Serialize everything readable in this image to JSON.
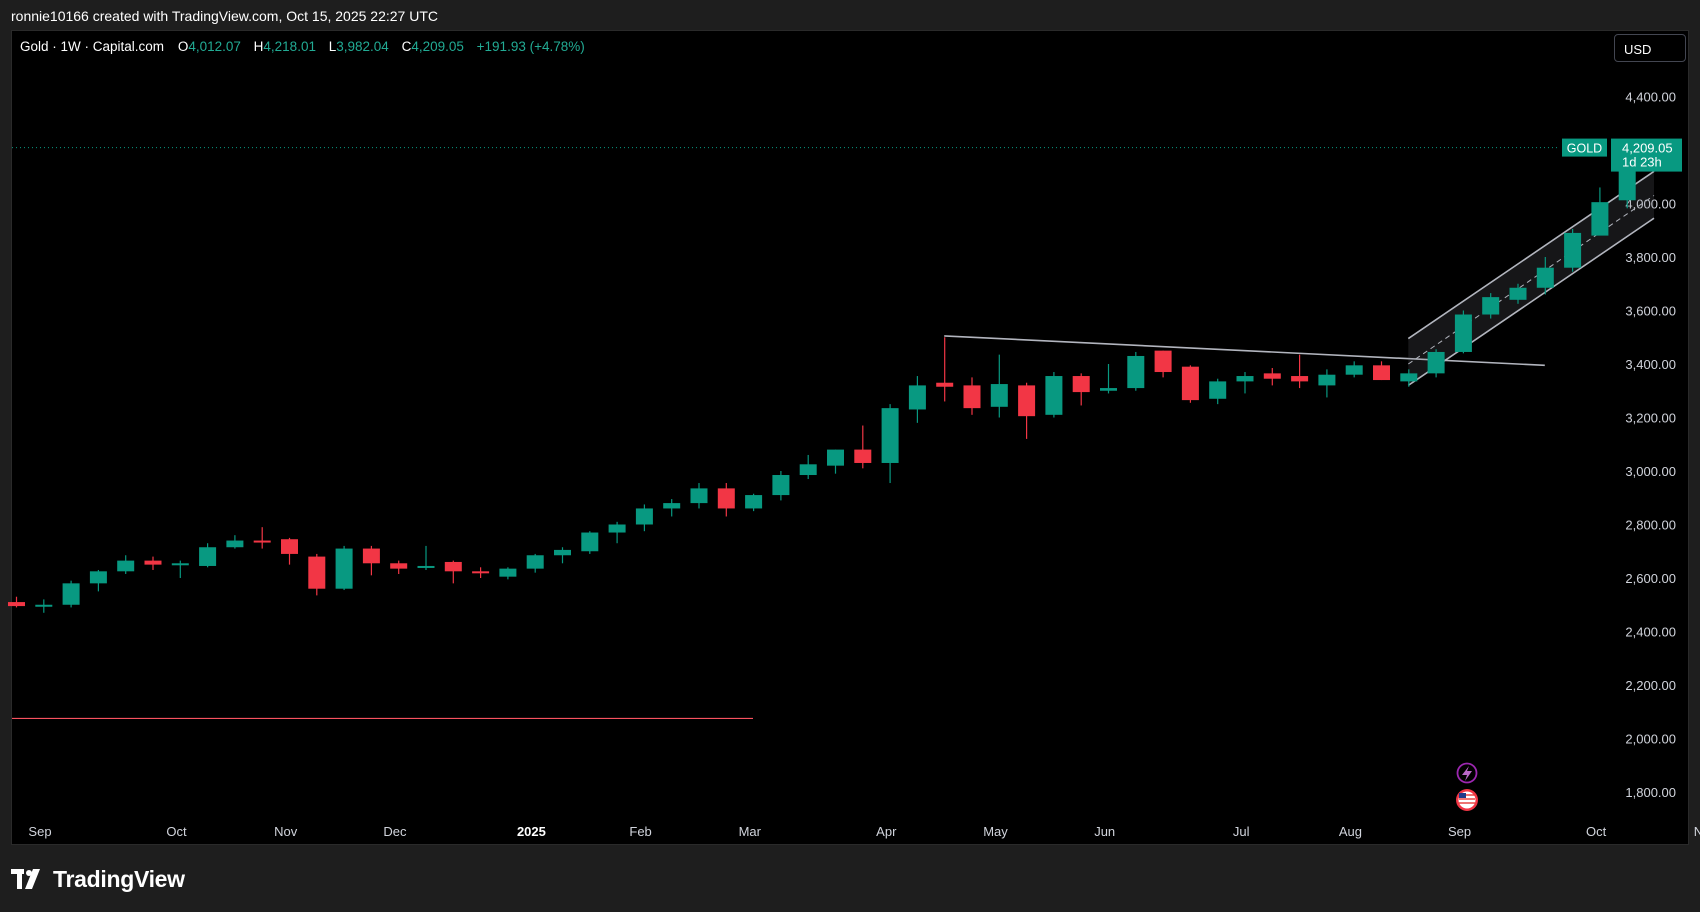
{
  "credit": "ronnie10166 created with TradingView.com, Oct 15, 2025 22:27 UTC",
  "legend": {
    "symbol": "Gold · 1W · Capital.com",
    "o_label": "O",
    "o_value": "4,012.07",
    "h_label": "H",
    "h_value": "4,218.01",
    "l_label": "L",
    "l_value": "3,982.04",
    "c_label": "C",
    "c_value": "4,209.05",
    "change": "+191.93 (+4.78%)"
  },
  "currency": "USD",
  "price_tag": {
    "symbol": "GOLD",
    "price": "4,209.05",
    "countdown": "1d 23h"
  },
  "brand": "TradingView",
  "colors": {
    "up": "#089981",
    "down": "#f23645",
    "background": "#000000",
    "text": "#d1d4dc"
  },
  "icons": [
    "lightning-icon",
    "us-flag-icon"
  ],
  "chart_data": {
    "type": "candlestick",
    "interval": "1W",
    "y_axis": {
      "range": [
        1700,
        4550
      ],
      "ticks": [
        4400,
        4000,
        3800,
        3600,
        3400,
        3200,
        3000,
        2800,
        2600,
        2400,
        2200,
        2000,
        1800
      ],
      "tick_labels": [
        "4,400.00",
        "4,000.00",
        "3,800.00",
        "3,600.00",
        "3,400.00",
        "3,200.00",
        "3,000.00",
        "2,800.00",
        "2,600.00",
        "2,400.00",
        "2,200.00",
        "2,000.00",
        "1,800.00"
      ]
    },
    "x_axis": {
      "labels": [
        {
          "text": "Sep",
          "week": 0
        },
        {
          "text": "Oct",
          "week": 5
        },
        {
          "text": "Nov",
          "week": 9
        },
        {
          "text": "Dec",
          "week": 13
        },
        {
          "text": "2025",
          "week": 18,
          "bold": true
        },
        {
          "text": "Feb",
          "week": 22
        },
        {
          "text": "Mar",
          "week": 26
        },
        {
          "text": "Apr",
          "week": 31
        },
        {
          "text": "May",
          "week": 35
        },
        {
          "text": "Jun",
          "week": 39
        },
        {
          "text": "Jul",
          "week": 44
        },
        {
          "text": "Aug",
          "week": 48
        },
        {
          "text": "Sep",
          "week": 52
        },
        {
          "text": "Oct",
          "week": 57
        },
        {
          "text": "Nov",
          "week": 61
        }
      ]
    },
    "candles": [
      {
        "o": 2510,
        "h": 2530,
        "l": 2490,
        "c": 2495
      },
      {
        "o": 2495,
        "h": 2520,
        "l": 2470,
        "c": 2500
      },
      {
        "o": 2500,
        "h": 2590,
        "l": 2490,
        "c": 2580
      },
      {
        "o": 2580,
        "h": 2630,
        "l": 2550,
        "c": 2625
      },
      {
        "o": 2625,
        "h": 2685,
        "l": 2615,
        "c": 2665
      },
      {
        "o": 2665,
        "h": 2680,
        "l": 2630,
        "c": 2650
      },
      {
        "o": 2650,
        "h": 2665,
        "l": 2600,
        "c": 2655
      },
      {
        "o": 2645,
        "h": 2730,
        "l": 2640,
        "c": 2715
      },
      {
        "o": 2715,
        "h": 2760,
        "l": 2710,
        "c": 2740
      },
      {
        "o": 2740,
        "h": 2790,
        "l": 2710,
        "c": 2735
      },
      {
        "o": 2745,
        "h": 2750,
        "l": 2650,
        "c": 2690
      },
      {
        "o": 2680,
        "h": 2690,
        "l": 2535,
        "c": 2560
      },
      {
        "o": 2560,
        "h": 2720,
        "l": 2555,
        "c": 2710
      },
      {
        "o": 2710,
        "h": 2720,
        "l": 2610,
        "c": 2655
      },
      {
        "o": 2655,
        "h": 2665,
        "l": 2615,
        "c": 2635
      },
      {
        "o": 2640,
        "h": 2720,
        "l": 2630,
        "c": 2645
      },
      {
        "o": 2660,
        "h": 2665,
        "l": 2580,
        "c": 2625
      },
      {
        "o": 2625,
        "h": 2640,
        "l": 2600,
        "c": 2620
      },
      {
        "o": 2605,
        "h": 2640,
        "l": 2595,
        "c": 2635
      },
      {
        "o": 2635,
        "h": 2690,
        "l": 2620,
        "c": 2685
      },
      {
        "o": 2685,
        "h": 2715,
        "l": 2655,
        "c": 2705
      },
      {
        "o": 2700,
        "h": 2775,
        "l": 2690,
        "c": 2770
      },
      {
        "o": 2770,
        "h": 2810,
        "l": 2730,
        "c": 2800
      },
      {
        "o": 2800,
        "h": 2875,
        "l": 2775,
        "c": 2860
      },
      {
        "o": 2860,
        "h": 2895,
        "l": 2830,
        "c": 2880
      },
      {
        "o": 2880,
        "h": 2955,
        "l": 2860,
        "c": 2935
      },
      {
        "o": 2935,
        "h": 2955,
        "l": 2830,
        "c": 2860
      },
      {
        "o": 2860,
        "h": 2915,
        "l": 2850,
        "c": 2910
      },
      {
        "o": 2910,
        "h": 3000,
        "l": 2890,
        "c": 2985
      },
      {
        "o": 2985,
        "h": 3060,
        "l": 2970,
        "c": 3025
      },
      {
        "o": 3020,
        "h": 3080,
        "l": 2990,
        "c": 3080
      },
      {
        "o": 3080,
        "h": 3170,
        "l": 3010,
        "c": 3030
      },
      {
        "o": 3030,
        "h": 3250,
        "l": 2955,
        "c": 3235
      },
      {
        "o": 3230,
        "h": 3355,
        "l": 3180,
        "c": 3320
      },
      {
        "o": 3330,
        "h": 3500,
        "l": 3260,
        "c": 3315
      },
      {
        "o": 3320,
        "h": 3350,
        "l": 3210,
        "c": 3235
      },
      {
        "o": 3240,
        "h": 3435,
        "l": 3200,
        "c": 3325
      },
      {
        "o": 3320,
        "h": 3330,
        "l": 3120,
        "c": 3205
      },
      {
        "o": 3210,
        "h": 3370,
        "l": 3200,
        "c": 3355
      },
      {
        "o": 3355,
        "h": 3365,
        "l": 3245,
        "c": 3295
      },
      {
        "o": 3300,
        "h": 3400,
        "l": 3290,
        "c": 3310
      },
      {
        "o": 3310,
        "h": 3445,
        "l": 3300,
        "c": 3430
      },
      {
        "o": 3450,
        "h": 3450,
        "l": 3350,
        "c": 3370
      },
      {
        "o": 3390,
        "h": 3395,
        "l": 3255,
        "c": 3265
      },
      {
        "o": 3270,
        "h": 3345,
        "l": 3250,
        "c": 3335
      },
      {
        "o": 3335,
        "h": 3370,
        "l": 3290,
        "c": 3355
      },
      {
        "o": 3365,
        "h": 3385,
        "l": 3320,
        "c": 3345
      },
      {
        "o": 3355,
        "h": 3435,
        "l": 3310,
        "c": 3335
      },
      {
        "o": 3320,
        "h": 3380,
        "l": 3275,
        "c": 3360
      },
      {
        "o": 3360,
        "h": 3410,
        "l": 3350,
        "c": 3395
      },
      {
        "o": 3395,
        "h": 3410,
        "l": 3340,
        "c": 3340
      },
      {
        "o": 3335,
        "h": 3380,
        "l": 3315,
        "c": 3365
      },
      {
        "o": 3365,
        "h": 3455,
        "l": 3350,
        "c": 3445
      },
      {
        "o": 3445,
        "h": 3600,
        "l": 3440,
        "c": 3585
      },
      {
        "o": 3585,
        "h": 3665,
        "l": 3570,
        "c": 3650
      },
      {
        "o": 3640,
        "h": 3700,
        "l": 3625,
        "c": 3685
      },
      {
        "o": 3685,
        "h": 3800,
        "l": 3660,
        "c": 3760
      },
      {
        "o": 3760,
        "h": 3905,
        "l": 3745,
        "c": 3890
      },
      {
        "o": 3880,
        "h": 4060,
        "l": 3885,
        "c": 4005
      },
      {
        "o": 4012.07,
        "h": 4218.01,
        "l": 3982.04,
        "c": 4209.05
      }
    ],
    "current_price": 4209.05,
    "support_level": 2075,
    "trendlines": [
      {
        "name": "descending-resistance",
        "from": {
          "week": 34,
          "price": 3505
        },
        "to": {
          "week": 56,
          "price": 3395
        }
      }
    ],
    "channel": {
      "upper": {
        "from": {
          "week": 51,
          "price": 3495
        },
        "to": {
          "week": 60,
          "price": 4120
        }
      },
      "middle": {
        "from": {
          "week": 51,
          "price": 3400
        },
        "to": {
          "week": 60,
          "price": 4030
        }
      },
      "lower": {
        "from": {
          "week": 51,
          "price": 3320
        },
        "to": {
          "week": 60,
          "price": 3945
        }
      }
    }
  }
}
